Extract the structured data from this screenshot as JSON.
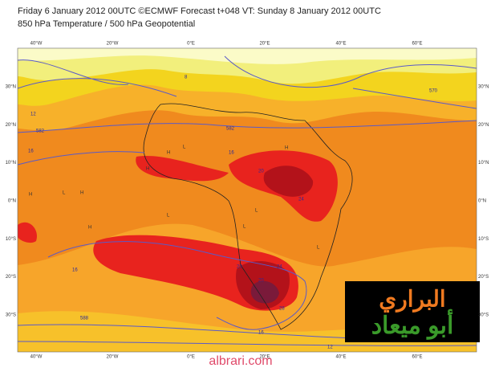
{
  "header": {
    "line1": "Friday 6 January 2012 00UTC ©ECMWF Forecast t+048 VT: Sunday 8 January 2012 00UTC",
    "line2": "850 hPa Temperature / 500 hPa Geopotential"
  },
  "map": {
    "lon_labels": [
      "40°W",
      "20°W",
      "0°E",
      "20°E",
      "40°E",
      "60°E"
    ],
    "lat_labels": [
      "30°N",
      "20°N",
      "10°N",
      "0°N",
      "10°S",
      "20°S",
      "30°S"
    ],
    "contour_labels": [
      "582",
      "16",
      "12",
      "8",
      "570",
      "582",
      "16",
      "20",
      "24",
      "20",
      "16",
      "588",
      "16",
      "12",
      "20",
      "24",
      "28"
    ],
    "pressure_labels": [
      "H",
      "H",
      "L",
      "L",
      "H",
      "L",
      "H",
      "L",
      "H",
      "L",
      "L",
      "H"
    ]
  },
  "watermark": {
    "line1": "البراري",
    "line2": "أبو ميعاد",
    "site": "albrari.com"
  }
}
